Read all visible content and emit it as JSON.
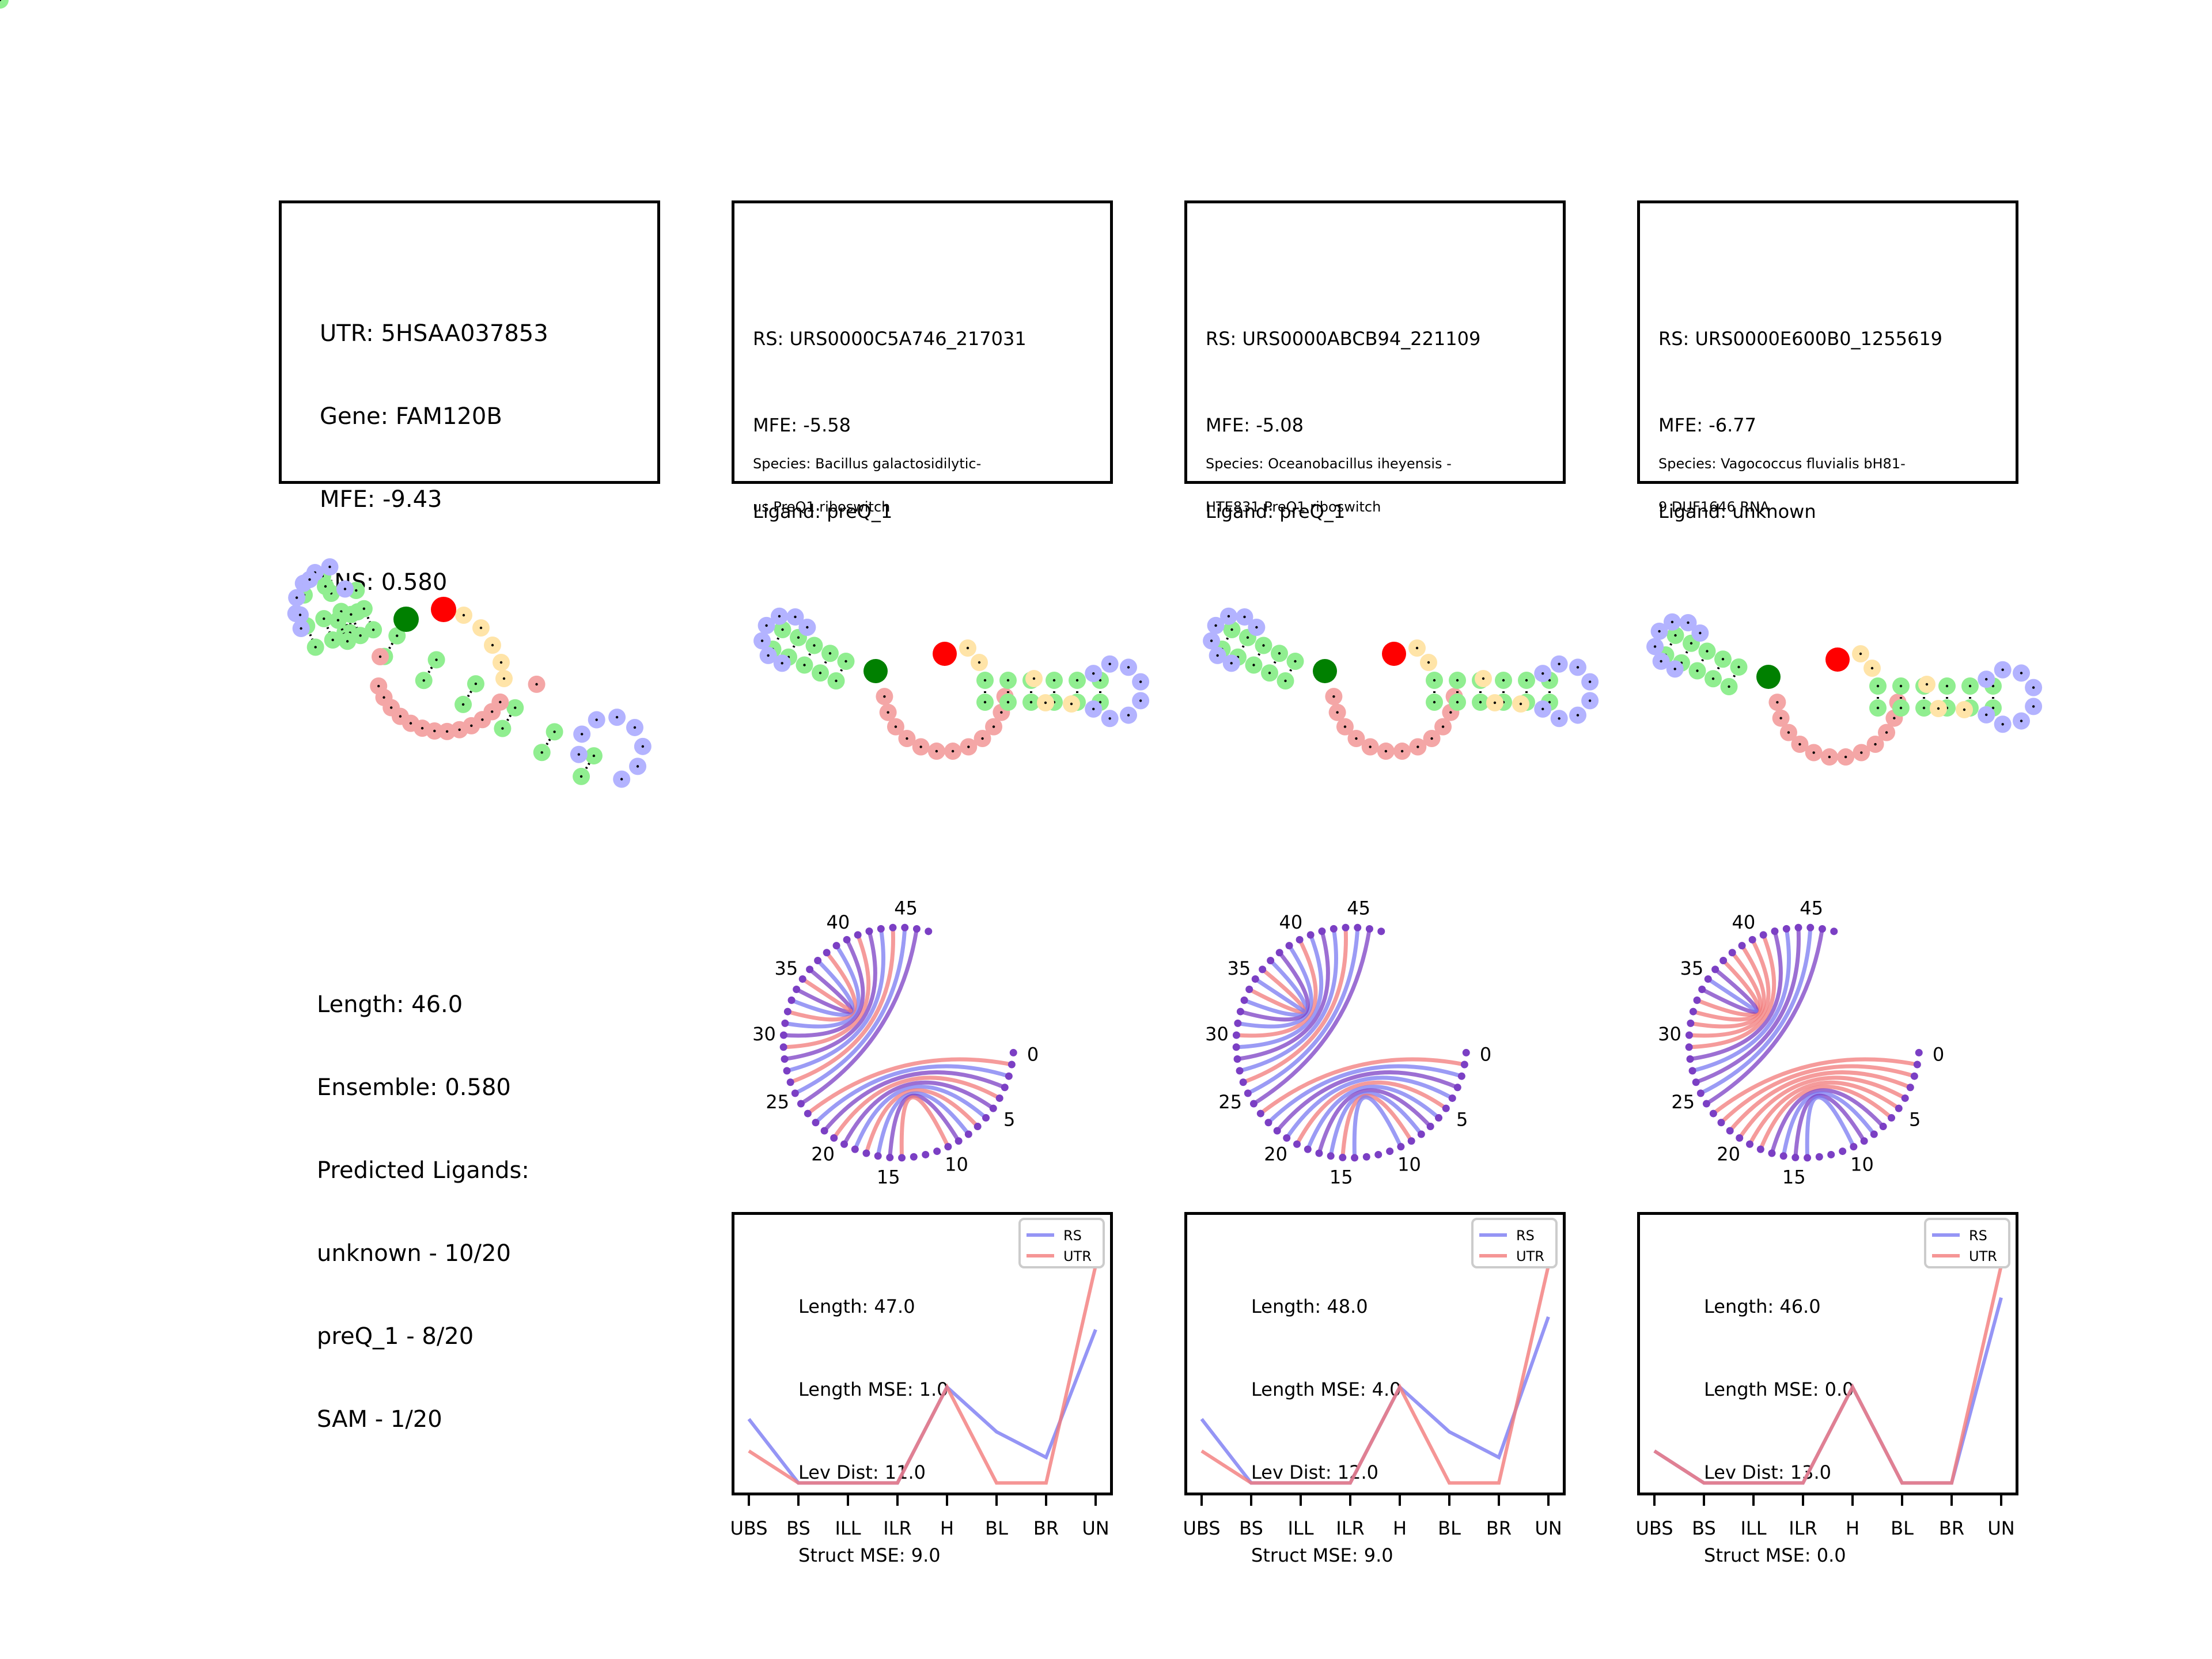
{
  "utr_panel": {
    "lines": [
      "UTR: 5HSAA037853",
      "Gene: FAM120B",
      "MFE: -9.43",
      "ENS: 0.580"
    ]
  },
  "utr_summary": {
    "lines": [
      "Length: 46.0",
      "Ensemble: 0.580",
      "Predicted Ligands:",
      "unknown - 10/20",
      "preQ_1 - 8/20",
      "SAM - 1/20"
    ]
  },
  "rs_panels": [
    {
      "lines": [
        "RS: URS0000C5A746_217031",
        "MFE: -5.58",
        "Ligand: preQ_1"
      ],
      "species": [
        "Species: Bacillus galactosidilytic-",
        "us PreQ1 riboswitch"
      ]
    },
    {
      "lines": [
        "RS: URS0000ABCB94_221109",
        "MFE: -5.08",
        "Ligand: preQ_1"
      ],
      "species": [
        "Species: Oceanobacillus iheyensis -",
        "HTE831 PreQ1 riboswitch"
      ]
    },
    {
      "lines": [
        "RS: URS0000E600B0_1255619",
        "MFE: -6.77",
        "Ligand: unknown"
      ],
      "species": [
        "Species: Vagococcus fluvialis bH81-",
        "9 DUF1646 RNA"
      ]
    }
  ],
  "arc_tick_labels": [
    "0",
    "5",
    "10",
    "15",
    "20",
    "25",
    "30",
    "35",
    "40",
    "45"
  ],
  "colors": {
    "stem": "#90ee90",
    "hairpin": "#b3b3ff",
    "multiloop": "#f4a6a6",
    "dangling": "#ffe4a8",
    "start": "#008000",
    "end": "#ff0000",
    "rs": "#7a7af2",
    "utr": "#f27a7a",
    "overlap": "#7b3fc4"
  },
  "chart_data": [
    {
      "type": "line",
      "categories": [
        "UBS",
        "BS",
        "ILL",
        "ILR",
        "H",
        "BL",
        "BR",
        "UN"
      ],
      "series": [
        {
          "name": "RS",
          "values": [
            2,
            0,
            0,
            0,
            3,
            1.6,
            0.8,
            4.8
          ]
        },
        {
          "name": "UTR",
          "values": [
            1,
            0,
            0,
            0,
            3,
            0,
            0,
            6.8
          ]
        }
      ],
      "ylim": [
        -0.3,
        8.3
      ],
      "legend": "top-right",
      "stats": [
        "Length: 47.0",
        "Length MSE: 1.0",
        "Lev Dist: 11.0",
        "Struct MSE: 9.0"
      ]
    },
    {
      "type": "line",
      "categories": [
        "UBS",
        "BS",
        "ILL",
        "ILR",
        "H",
        "BL",
        "BR",
        "UN"
      ],
      "series": [
        {
          "name": "RS",
          "values": [
            2,
            0,
            0,
            0,
            3,
            1.6,
            0.8,
            5.2
          ]
        },
        {
          "name": "UTR",
          "values": [
            1,
            0,
            0,
            0,
            3,
            0,
            0,
            6.8
          ]
        }
      ],
      "ylim": [
        -0.3,
        8.3
      ],
      "legend": "top-right",
      "stats": [
        "Length: 48.0",
        "Length MSE: 4.0",
        "Lev Dist: 12.0",
        "Struct MSE: 9.0"
      ]
    },
    {
      "type": "line",
      "categories": [
        "UBS",
        "BS",
        "ILL",
        "ILR",
        "H",
        "BL",
        "BR",
        "UN"
      ],
      "series": [
        {
          "name": "RS",
          "values": [
            1,
            0,
            0,
            0,
            3,
            0,
            0,
            5.8
          ]
        },
        {
          "name": "UTR",
          "values": [
            1,
            0,
            0,
            0,
            3,
            0,
            0,
            6.8
          ]
        }
      ],
      "ylim": [
        -0.3,
        8.3
      ],
      "legend": "top-right",
      "stats": [
        "Length: 46.0",
        "Length MSE: 0.0",
        "Lev Dist: 13.0",
        "Struct MSE: 0.0"
      ]
    }
  ]
}
